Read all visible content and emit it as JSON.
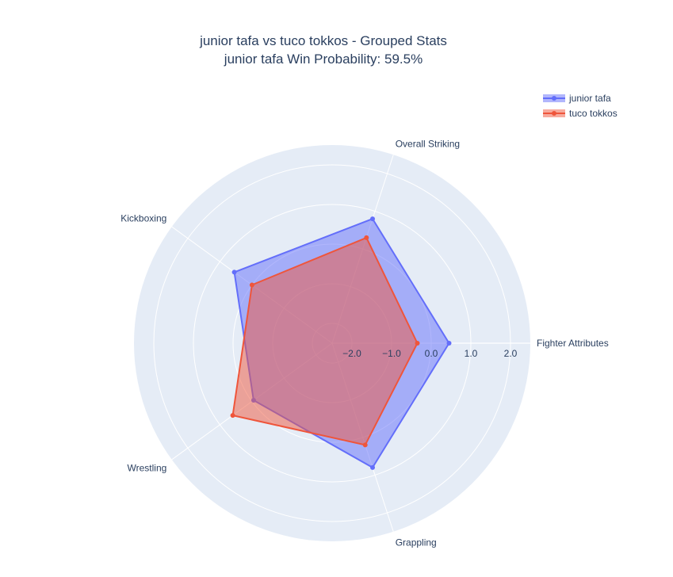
{
  "chart_data": {
    "type": "radar",
    "title_line1": "junior tafa vs tuco tokkos - Grouped Stats",
    "title_line2": "junior tafa Win Probability: 59.5%",
    "categories": [
      "Fighter Attributes",
      "Overall Striking",
      "Kickboxing",
      "Wrestling",
      "Grappling"
    ],
    "radial_range": [
      -2.5,
      2.5
    ],
    "radial_ticks": [
      -2.0,
      -1.0,
      0.0,
      1.0,
      2.0
    ],
    "radial_tick_labels": [
      "−2.0",
      "−1.0",
      "0.0",
      "1.0",
      "2.0"
    ],
    "series": [
      {
        "name": "junior tafa",
        "values": [
          0.45,
          0.8,
          0.55,
          -0.05,
          0.8
        ],
        "color": "#636efa"
      },
      {
        "name": "tuco tokkos",
        "values": [
          -0.35,
          0.3,
          0.0,
          0.6,
          0.2
        ],
        "color": "#ef553b"
      }
    ],
    "legend_position": "top-right"
  },
  "colors": {
    "polar_bg": "#e5ecf6",
    "grid": "#ffffff",
    "text": "#2a3f5f"
  }
}
